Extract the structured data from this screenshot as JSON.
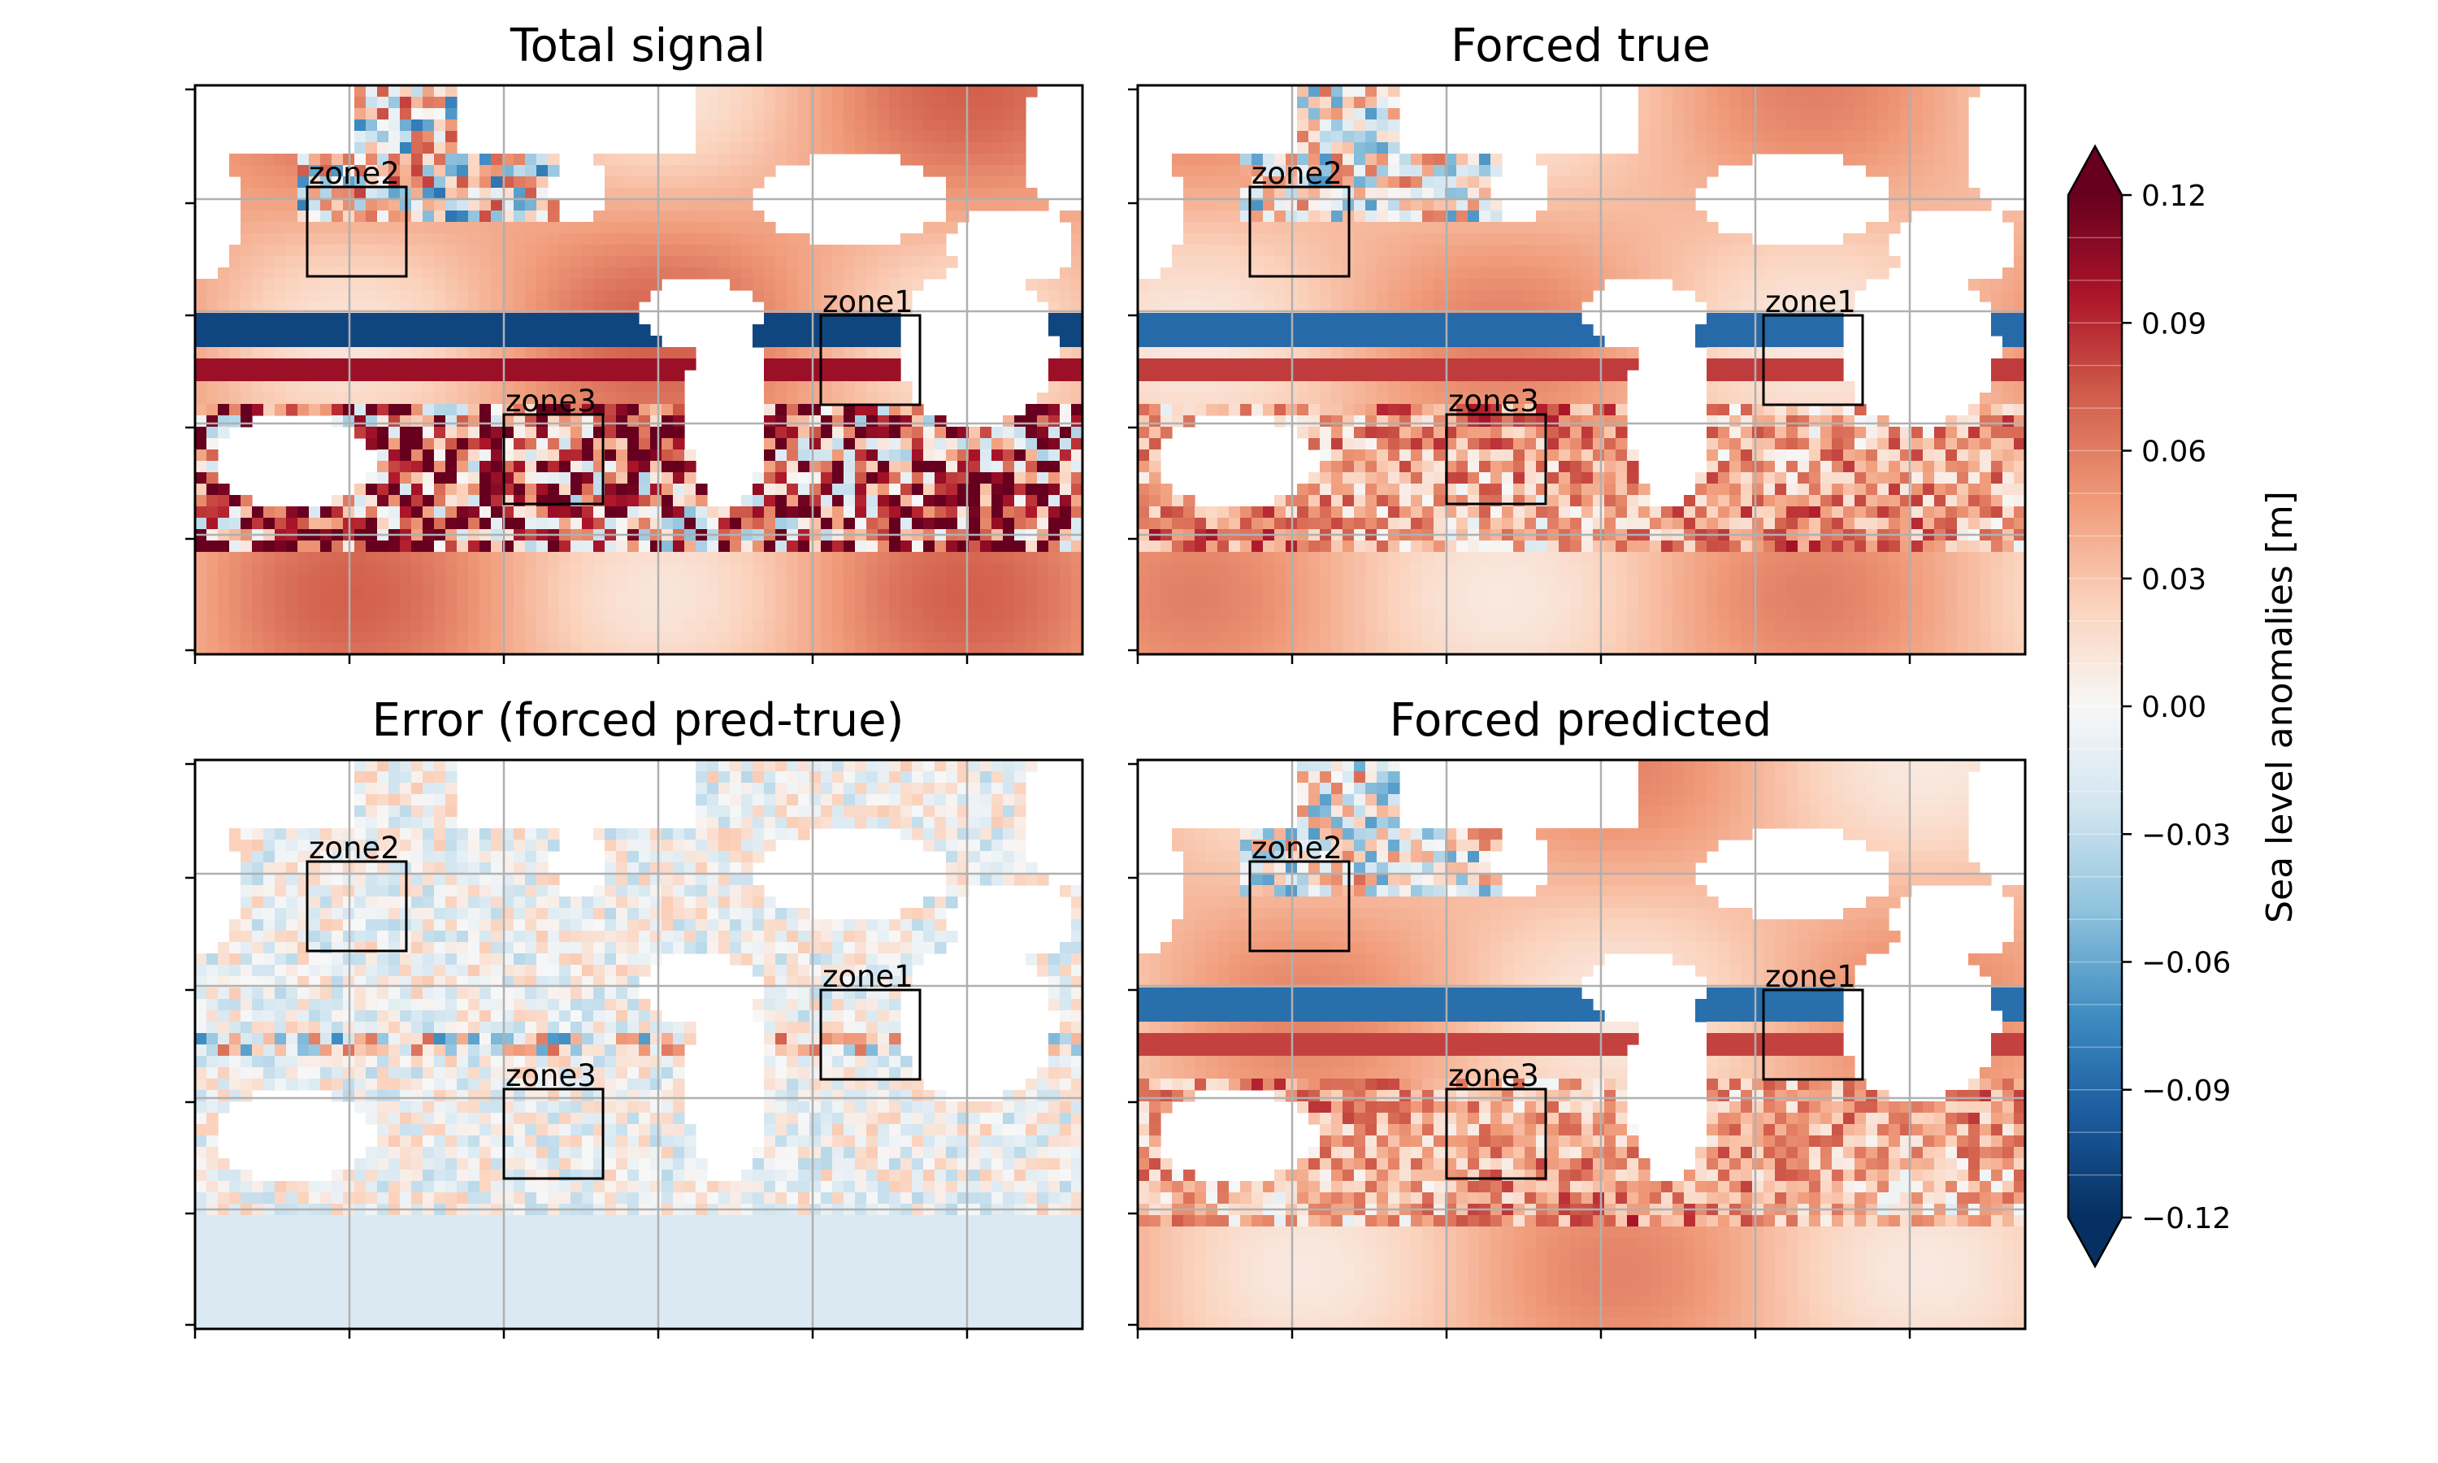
{
  "panels": [
    {
      "title": "Total signal",
      "intensity": 1.0
    },
    {
      "title": "Forced true",
      "intensity": 0.55
    },
    {
      "title": "Error (forced pred-true)",
      "intensity": 0.22
    },
    {
      "title": "Forced predicted",
      "intensity": 0.5
    }
  ],
  "zones": [
    {
      "label": "zone1"
    },
    {
      "label": "zone2"
    },
    {
      "label": "zone3"
    }
  ],
  "colorbar": {
    "label": "Sea level anomalies [m]",
    "ticks": [
      "0.12",
      "0.09",
      "0.06",
      "0.03",
      "0.00",
      "−0.03",
      "−0.06",
      "−0.09",
      "−0.12"
    ],
    "range": [
      -0.12,
      0.12
    ],
    "levels": 24,
    "colors": [
      "#053061",
      "#1b5b9e",
      "#3f8dc2",
      "#8fc2dd",
      "#d1e5f0",
      "#f7f7f7",
      "#fbd2bc",
      "#f09b7a",
      "#d2604d",
      "#ad1529",
      "#67001f"
    ]
  },
  "chart_data": {
    "type": "heatmap",
    "variable": "Sea level anomalies [m]",
    "colorbar_range": [
      -0.12,
      0.12
    ],
    "panels": [
      "Total signal",
      "Forced true",
      "Error (forced pred-true)",
      "Forced predicted"
    ],
    "boxes": [
      "zone1",
      "zone2",
      "zone3"
    ]
  }
}
